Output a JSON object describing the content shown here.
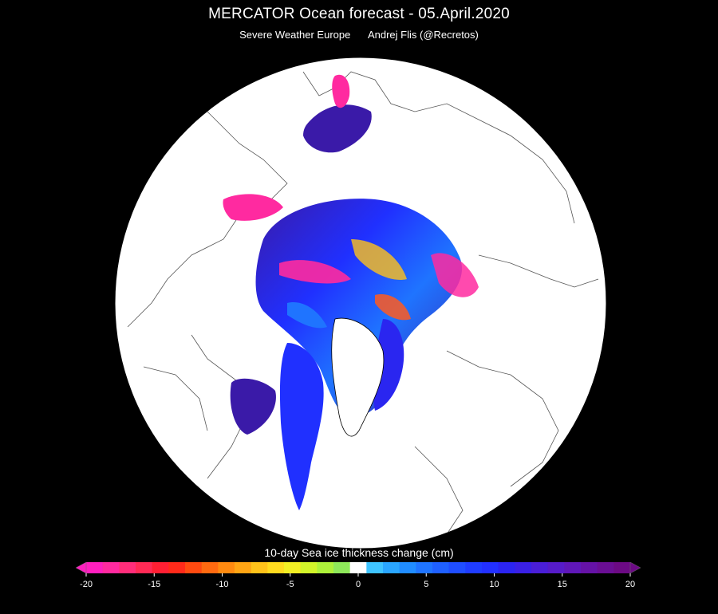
{
  "header": {
    "title": "MERCATOR Ocean forecast  -  05.April.2020",
    "source": "Severe Weather Europe",
    "author": "Andrej Flis (@Recretos)"
  },
  "legend": {
    "title": "10-day  Sea ice thickness change (cm)",
    "min": -20,
    "max": 20,
    "ticks": [
      {
        "label": "-20",
        "value": -20
      },
      {
        "label": "-15",
        "value": -15
      },
      {
        "label": "-10",
        "value": -10
      },
      {
        "label": "-5",
        "value": -5
      },
      {
        "label": "0",
        "value": 0
      },
      {
        "label": "5",
        "value": 5
      },
      {
        "label": "10",
        "value": 10
      },
      {
        "label": "15",
        "value": 15
      },
      {
        "label": "20",
        "value": 20
      }
    ],
    "colors": [
      "#ff1fbf",
      "#ff2a9f",
      "#ff2d7a",
      "#ff2a55",
      "#ff1f33",
      "#ff2a1a",
      "#ff4a10",
      "#ff6a10",
      "#ff8a10",
      "#ffa514",
      "#ffc21a",
      "#ffdb1f",
      "#f2ef24",
      "#d2f42a",
      "#aef13a",
      "#8ee85a",
      "#ffffff",
      "#3fc4ff",
      "#2aa6ff",
      "#208cff",
      "#1f74ff",
      "#1f60ff",
      "#1f4dff",
      "#1f3cff",
      "#2230ff",
      "#2b24f2",
      "#3a20e6",
      "#4a1ed8",
      "#561bc9",
      "#5f17b8",
      "#6512a6",
      "#6a0e94",
      "#6c0a84"
    ]
  },
  "map": {
    "background": "#000000",
    "land_color": "#ffffff",
    "coast_color": "#000000",
    "ice_colors": [
      "#3a1aa8",
      "#2030ff",
      "#1f74ff",
      "#ff2aa0",
      "#ffc21a",
      "#ff5a20",
      "#9ef03a"
    ]
  }
}
